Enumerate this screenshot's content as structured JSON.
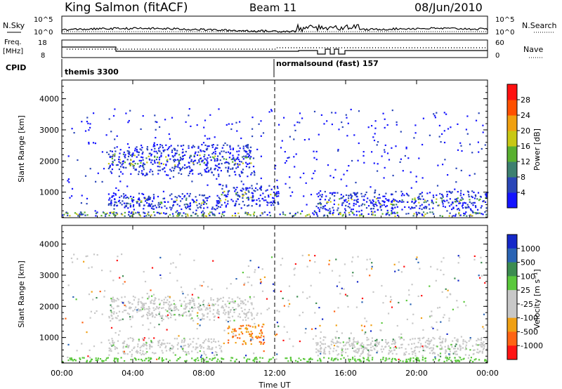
{
  "header": {
    "station": "King Salmon (fitACF)",
    "beam": "Beam 11",
    "date": "08/Jun/2010"
  },
  "top_panels": {
    "nsky_label": "N.Sky",
    "nsearch_label": "N.Search",
    "noise_ticks": [
      "10^5",
      "10^0"
    ],
    "freq_label_1": "Freq.",
    "freq_label_2": "[MHz]",
    "freq_ticks": [
      "18",
      "8"
    ],
    "nave_label": "Nave",
    "nave_ticks": [
      "60",
      "0"
    ],
    "cpid_label": "CPID",
    "cpid_segments": [
      "themis 3300",
      "normalsound (fast) 157"
    ]
  },
  "chart_data": [
    {
      "type": "heatmap",
      "title": "",
      "ylabel": "Slant Range [km]",
      "xlabel": "",
      "ylim": [
        180,
        4600
      ],
      "yticks": [
        1000,
        2000,
        3000,
        4000
      ],
      "colorbar_label": "Power [dB]",
      "colorbar_ticks": [
        "4",
        "8",
        "12",
        "16",
        "20",
        "24",
        "28"
      ],
      "colorbar_colors": [
        "#1414ff",
        "#2a46b8",
        "#3d8070",
        "#59b030",
        "#c8c814",
        "#f0a010",
        "#ff5000",
        "#ff1010"
      ],
      "regions": [
        {
          "t_start": 2.6,
          "t_end": 10.8,
          "r_min": 1550,
          "r_max": 2550,
          "level": "12-20"
        },
        {
          "t_start": 2.6,
          "t_end": 9.0,
          "r_min": 450,
          "r_max": 1000,
          "level": "4-12"
        },
        {
          "t_start": 8.8,
          "t_end": 12.2,
          "r_min": 550,
          "r_max": 1300,
          "level": "4-12"
        },
        {
          "t_start": 14.3,
          "t_end": 24.0,
          "r_min": 400,
          "r_max": 1050,
          "level": "4-24"
        }
      ]
    },
    {
      "type": "heatmap",
      "title": "",
      "ylabel": "Slant Range [km]",
      "xlabel": "Time UT",
      "ylim": [
        180,
        4600
      ],
      "yticks": [
        1000,
        2000,
        3000,
        4000
      ],
      "xlim": [
        0,
        24
      ],
      "xticks": [
        "00:00",
        "04:00",
        "08:00",
        "12:00",
        "16:00",
        "20:00",
        "00:00"
      ],
      "colorbar_label": "Velocity [m s⁻¹]",
      "colorbar_ticks": [
        "1000",
        "500",
        "100",
        "25",
        "-25",
        "-100",
        "-500",
        "-1000"
      ],
      "colorbar_colors": [
        "#1428c8",
        "#2a64b4",
        "#3c8c50",
        "#5ac83c",
        "#c8c8c8",
        "#c8c8c8",
        "#f0a014",
        "#ff6414",
        "#ff1414"
      ],
      "regions": [
        {
          "t_start": 2.6,
          "t_end": 10.8,
          "r_min": 1550,
          "r_max": 2350,
          "velocity": "-25 to 25"
        },
        {
          "t_start": 2.6,
          "t_end": 9.0,
          "r_min": 450,
          "r_max": 1000,
          "velocity": "-25 to 25"
        },
        {
          "t_start": 9.3,
          "t_end": 11.4,
          "r_min": 800,
          "r_max": 1450,
          "velocity": "-100 to -500"
        },
        {
          "t_start": 14.3,
          "t_end": 24.0,
          "r_min": 400,
          "r_max": 1050,
          "velocity": "-25 to 25"
        }
      ]
    }
  ]
}
